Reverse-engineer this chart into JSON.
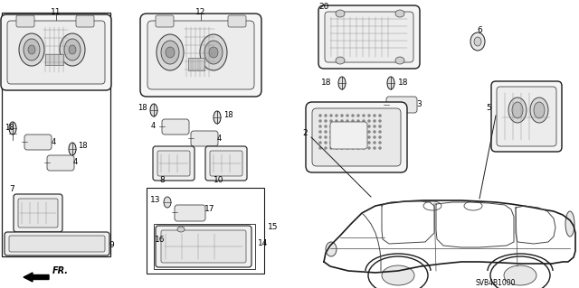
{
  "bg_color": "#ffffff",
  "diagram_code": "SVB4B1000",
  "figsize": [
    6.4,
    3.19
  ],
  "dpi": 100
}
